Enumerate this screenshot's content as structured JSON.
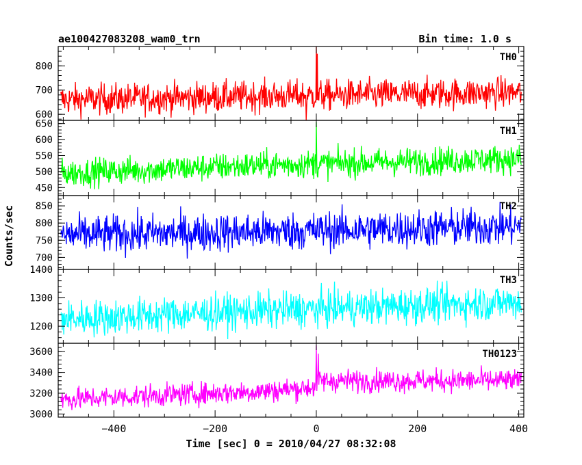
{
  "header": {
    "title": "ae100427083208_wam0_trn",
    "bin_time": "Bin time: 1.0 s"
  },
  "axes": {
    "ylabel": "Counts/sec",
    "xlabel": "Time [sec] 0 = 2010/04/27 08:32:08"
  },
  "chart_data": {
    "type": "line",
    "x_range": [
      -510,
      410
    ],
    "x_ticks": [
      -400,
      -200,
      0,
      200,
      400
    ],
    "x_step_sec": 1.0,
    "panels": [
      {
        "name": "TH0",
        "color": "#ff0000",
        "ylim": [
          575,
          880
        ],
        "yticks": [
          600,
          700,
          800
        ],
        "baseline": [
          [
            -505,
            660
          ],
          [
            -100,
            675
          ],
          [
            400,
            690
          ]
        ],
        "noise": 32,
        "spikes": [
          [
            0,
            880
          ],
          [
            2,
            850
          ],
          [
            -20,
            575
          ]
        ]
      },
      {
        "name": "TH1",
        "color": "#00ff00",
        "ylim": [
          425,
          660
        ],
        "yticks": [
          450,
          500,
          550,
          600,
          650
        ],
        "baseline": [
          [
            -505,
            495
          ],
          [
            -100,
            520
          ],
          [
            400,
            540
          ]
        ],
        "noise": 22,
        "spikes": [
          [
            0,
            655
          ]
        ]
      },
      {
        "name": "TH2",
        "color": "#0000ff",
        "ylim": [
          665,
          880
        ],
        "yticks": [
          700,
          750,
          800,
          850
        ],
        "baseline": [
          [
            -505,
            765
          ],
          [
            -100,
            775
          ],
          [
            400,
            790
          ]
        ],
        "noise": 28,
        "spikes": []
      },
      {
        "name": "TH3",
        "color": "#00ffff",
        "ylim": [
          1140,
          1400
        ],
        "yticks": [
          1200,
          1300,
          1400
        ],
        "baseline": [
          [
            -505,
            1225
          ],
          [
            -100,
            1255
          ],
          [
            400,
            1285
          ]
        ],
        "noise": 32,
        "spikes": []
      },
      {
        "name": "TH0123",
        "color": "#ff00ff",
        "ylim": [
          2970,
          3680
        ],
        "yticks": [
          3000,
          3200,
          3400,
          3600
        ],
        "baseline": [
          [
            -505,
            3140
          ],
          [
            -100,
            3220
          ],
          [
            -2,
            3260
          ],
          [
            2,
            3320
          ],
          [
            400,
            3320
          ]
        ],
        "noise": 55,
        "spikes": [
          [
            0,
            3660
          ],
          [
            4,
            3580
          ]
        ]
      }
    ]
  }
}
